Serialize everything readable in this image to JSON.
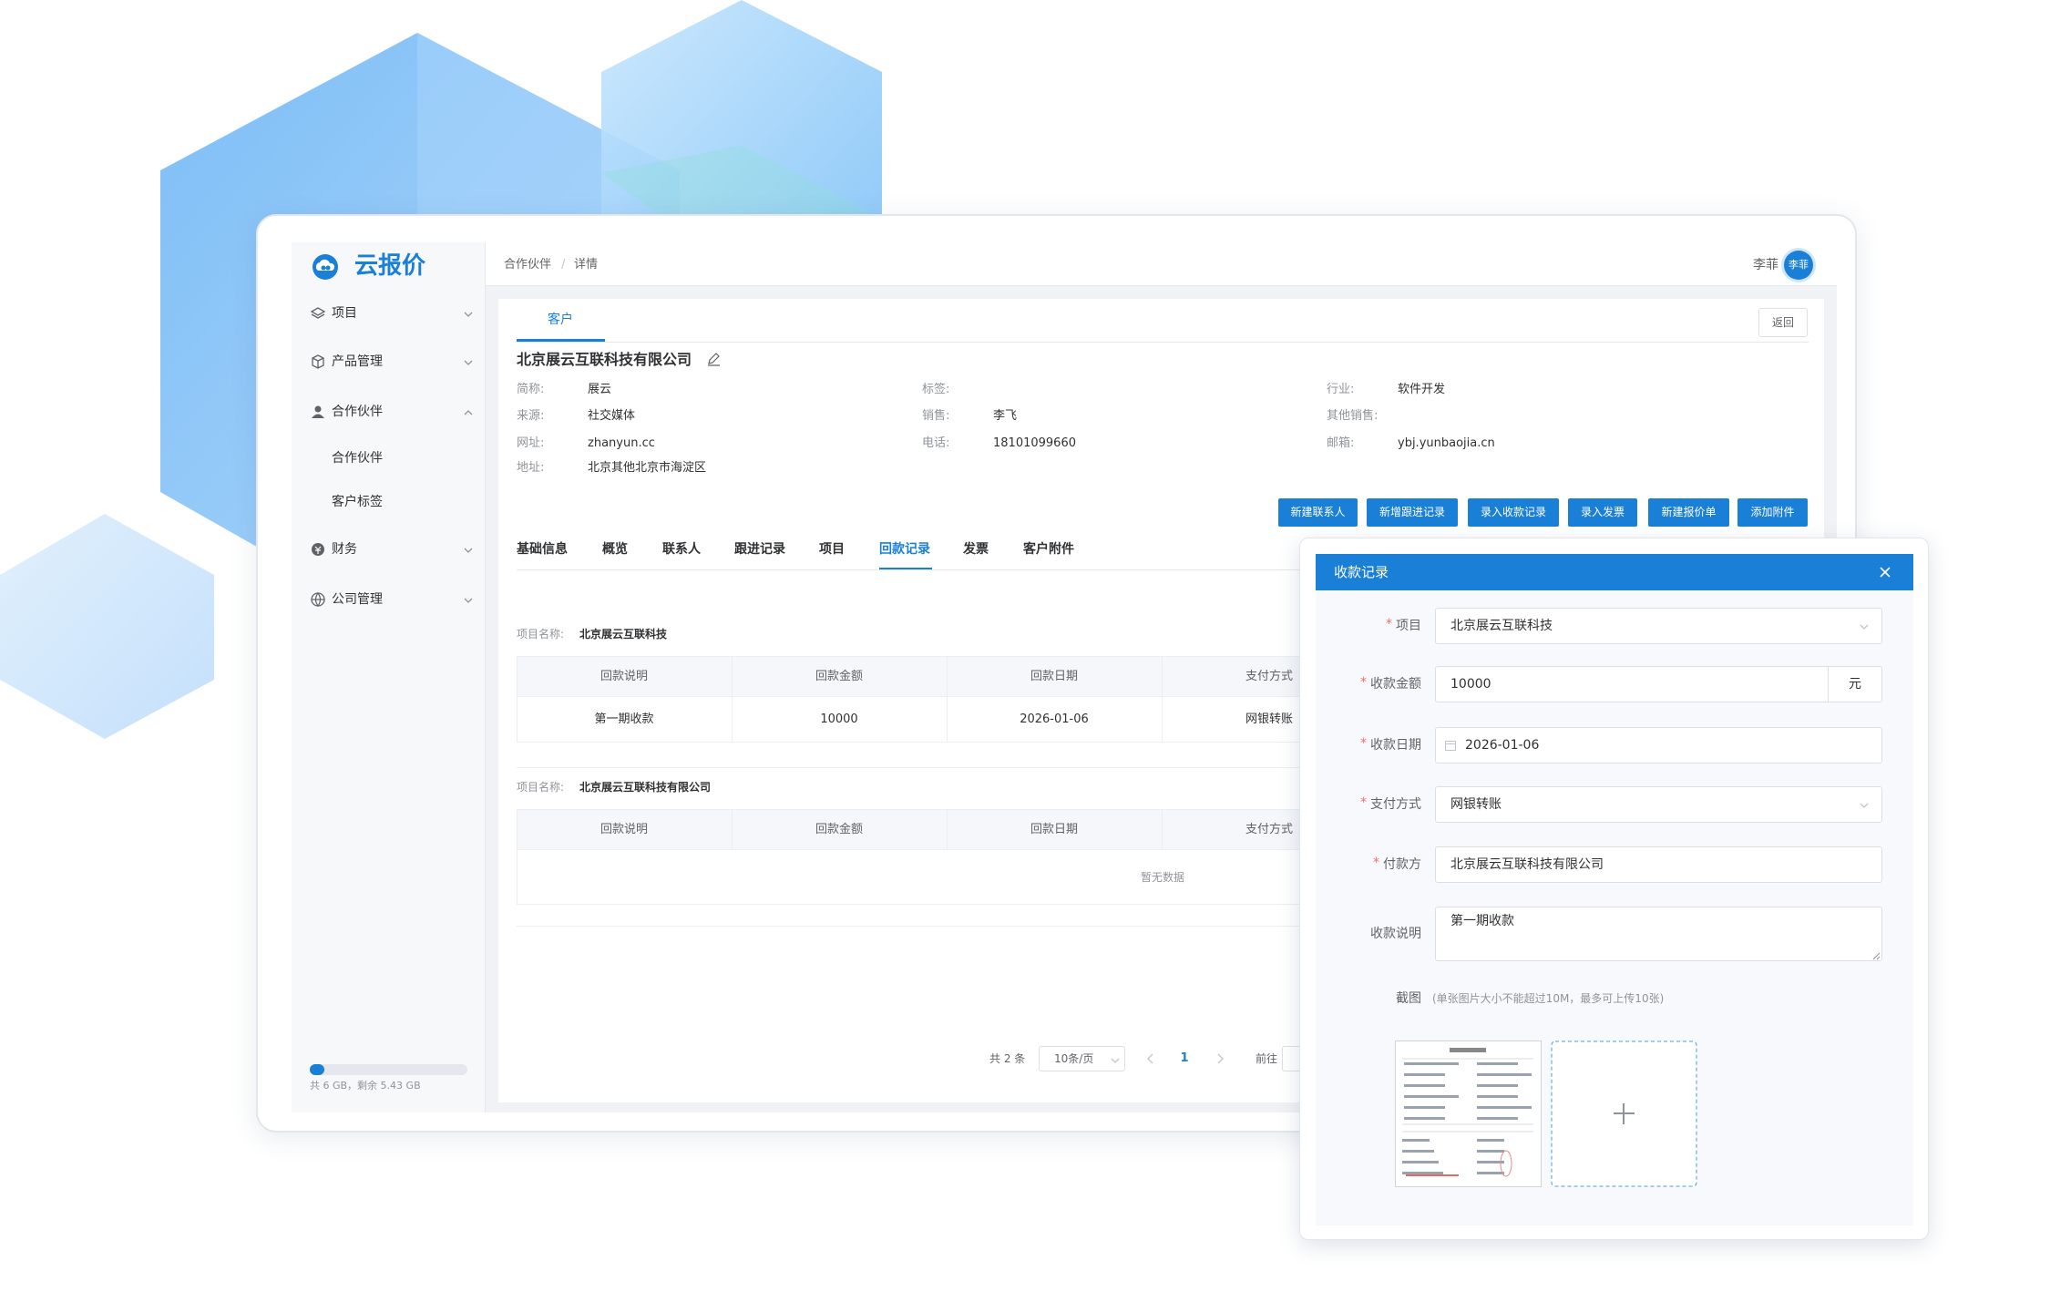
{
  "app": {
    "brand": "云报价",
    "breadcrumb": [
      "合作伙伴",
      "详情"
    ],
    "breadcrumb_separator": "/",
    "user": "李菲",
    "avatar": "李菲"
  },
  "sidebar": {
    "menu": [
      {
        "label": "项目"
      },
      {
        "label": "产品管理"
      },
      {
        "label": "合作伙伴",
        "children": [
          "合作伙伴",
          "客户标签"
        ]
      },
      {
        "label": "财务"
      },
      {
        "label": "公司管理"
      }
    ],
    "storage": "共 6 GB，剩余 5.43 GB"
  },
  "customer": {
    "tab": "客户",
    "back": "返回",
    "name": "北京展云互联科技有限公司",
    "fields": [
      {
        "label": "简称:",
        "value": "展云"
      },
      {
        "label": "标签:"
      },
      {
        "label": "行业:",
        "value": "软件开发"
      },
      {
        "label": "来源:",
        "value": "社交媒体"
      },
      {
        "label": "销售:",
        "value": "李飞"
      },
      {
        "label": "其他销售:"
      },
      {
        "label": "网址:",
        "value": "zhanyun.cc"
      },
      {
        "label": "电话:",
        "value": "18101099660"
      },
      {
        "label": "邮箱:",
        "value": "ybj.yunbaojia.cn"
      },
      {
        "label": "地址:",
        "value": "北京其他北京市海淀区"
      }
    ]
  },
  "actions": [
    "新建联系人",
    "新增跟进记录",
    "录入收款记录",
    "录入发票",
    "新建报价单",
    "添加附件"
  ],
  "tabs": {
    "items": [
      "基础信息",
      "概览",
      "联系人",
      "跟进记录",
      "项目",
      "回款记录",
      "发票",
      "客户附件"
    ],
    "active": 5
  },
  "payments": {
    "project_label": "项目名称:",
    "columns": [
      "回款说明",
      "回款金额",
      "回款日期",
      "支付方式"
    ],
    "groups": [
      {
        "project": "北京展云互联科技",
        "rows": [
          [
            "第一期收款",
            "10000",
            "2026-01-06",
            "网银转账"
          ]
        ]
      },
      {
        "project": "北京展云互联科技有限公司",
        "empty": "暂无数据"
      }
    ]
  },
  "pagination": {
    "total": "共 2 条",
    "page_size": "10条/页",
    "current": "1",
    "goto": "前往"
  },
  "modal": {
    "title": "收款记录",
    "required_mark": "*",
    "fields": [
      {
        "label": "项目",
        "value": "北京展云互联科技",
        "required": true,
        "kind": "select"
      },
      {
        "label": "收款金额",
        "value": "10000",
        "unit": "元",
        "required": true
      },
      {
        "label": "收款日期",
        "value": "2026-01-06",
        "required": true,
        "kind": "date"
      },
      {
        "label": "支付方式",
        "value": "网银转账",
        "required": true,
        "kind": "select"
      },
      {
        "label": "付款方",
        "value": "北京展云互联科技有限公司",
        "required": true
      },
      {
        "label": "收款说明",
        "value": "第一期收款",
        "kind": "textarea"
      }
    ],
    "upload_label": "截图",
    "upload_hint": "(单张图片大小不能超过10M，最多可上传10张)"
  }
}
